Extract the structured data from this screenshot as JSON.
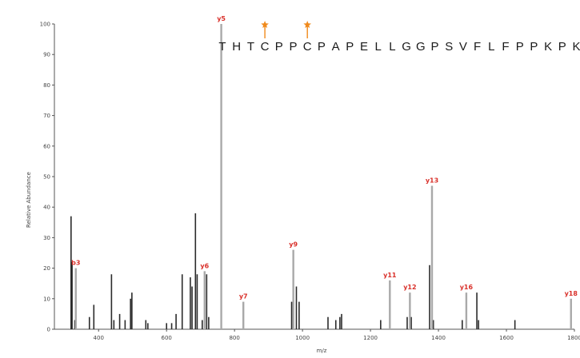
{
  "chart_data": {
    "type": "bar",
    "xlabel": "m/z",
    "ylabel": "Relative Abundance",
    "xlim": [
      270,
      1800
    ],
    "ylim": [
      0,
      100
    ],
    "xticks": [
      400,
      600,
      800,
      1000,
      1200,
      1400,
      1600,
      1800
    ],
    "yticks": [
      0,
      10,
      20,
      30,
      40,
      50,
      60,
      70,
      80,
      90,
      100
    ],
    "peptide_sequence": "THTCPPCPAPELLGGPSVFLFPPKPK",
    "modified_residue_positions": [
      4,
      7
    ],
    "colors": {
      "annotated_peak": "#a9a9a9",
      "peak": "#2b2b2b",
      "ion_label": "#d9302a",
      "modification_marker": "#f08a1c"
    },
    "annotated_peaks": [
      {
        "label": "b3",
        "mz": 333,
        "intensity": 20
      },
      {
        "label": "y5",
        "mz": 761,
        "intensity": 100
      },
      {
        "label": "y6",
        "mz": 712,
        "intensity": 19
      },
      {
        "label": "y7",
        "mz": 826,
        "intensity": 9
      },
      {
        "label": "y9",
        "mz": 973,
        "intensity": 26
      },
      {
        "label": "y11",
        "mz": 1257,
        "intensity": 16
      },
      {
        "label": "y12",
        "mz": 1316,
        "intensity": 12
      },
      {
        "label": "y13",
        "mz": 1381,
        "intensity": 47
      },
      {
        "label": "y16",
        "mz": 1482,
        "intensity": 12
      },
      {
        "label": "y18",
        "mz": 1790,
        "intensity": 10
      }
    ],
    "other_peaks": [
      {
        "mz": 319,
        "intensity": 37
      },
      {
        "mz": 322,
        "intensity": 22
      },
      {
        "mz": 330,
        "intensity": 3
      },
      {
        "mz": 373,
        "intensity": 4
      },
      {
        "mz": 386,
        "intensity": 8
      },
      {
        "mz": 438,
        "intensity": 18
      },
      {
        "mz": 445,
        "intensity": 3
      },
      {
        "mz": 462,
        "intensity": 5
      },
      {
        "mz": 478,
        "intensity": 3
      },
      {
        "mz": 494,
        "intensity": 10
      },
      {
        "mz": 498,
        "intensity": 12
      },
      {
        "mz": 539,
        "intensity": 3
      },
      {
        "mz": 545,
        "intensity": 2
      },
      {
        "mz": 600,
        "intensity": 2
      },
      {
        "mz": 615,
        "intensity": 2
      },
      {
        "mz": 628,
        "intensity": 5
      },
      {
        "mz": 646,
        "intensity": 18
      },
      {
        "mz": 670,
        "intensity": 17
      },
      {
        "mz": 675,
        "intensity": 14
      },
      {
        "mz": 685,
        "intensity": 38
      },
      {
        "mz": 690,
        "intensity": 18
      },
      {
        "mz": 705,
        "intensity": 3
      },
      {
        "mz": 718,
        "intensity": 18
      },
      {
        "mz": 724,
        "intensity": 4
      },
      {
        "mz": 968,
        "intensity": 9
      },
      {
        "mz": 982,
        "intensity": 14
      },
      {
        "mz": 990,
        "intensity": 9
      },
      {
        "mz": 1075,
        "intensity": 4
      },
      {
        "mz": 1098,
        "intensity": 3
      },
      {
        "mz": 1110,
        "intensity": 4
      },
      {
        "mz": 1115,
        "intensity": 5
      },
      {
        "mz": 1230,
        "intensity": 3
      },
      {
        "mz": 1308,
        "intensity": 4
      },
      {
        "mz": 1320,
        "intensity": 4
      },
      {
        "mz": 1374,
        "intensity": 21
      },
      {
        "mz": 1385,
        "intensity": 3
      },
      {
        "mz": 1470,
        "intensity": 3
      },
      {
        "mz": 1513,
        "intensity": 12
      },
      {
        "mz": 1518,
        "intensity": 3
      },
      {
        "mz": 1625,
        "intensity": 3
      }
    ]
  }
}
